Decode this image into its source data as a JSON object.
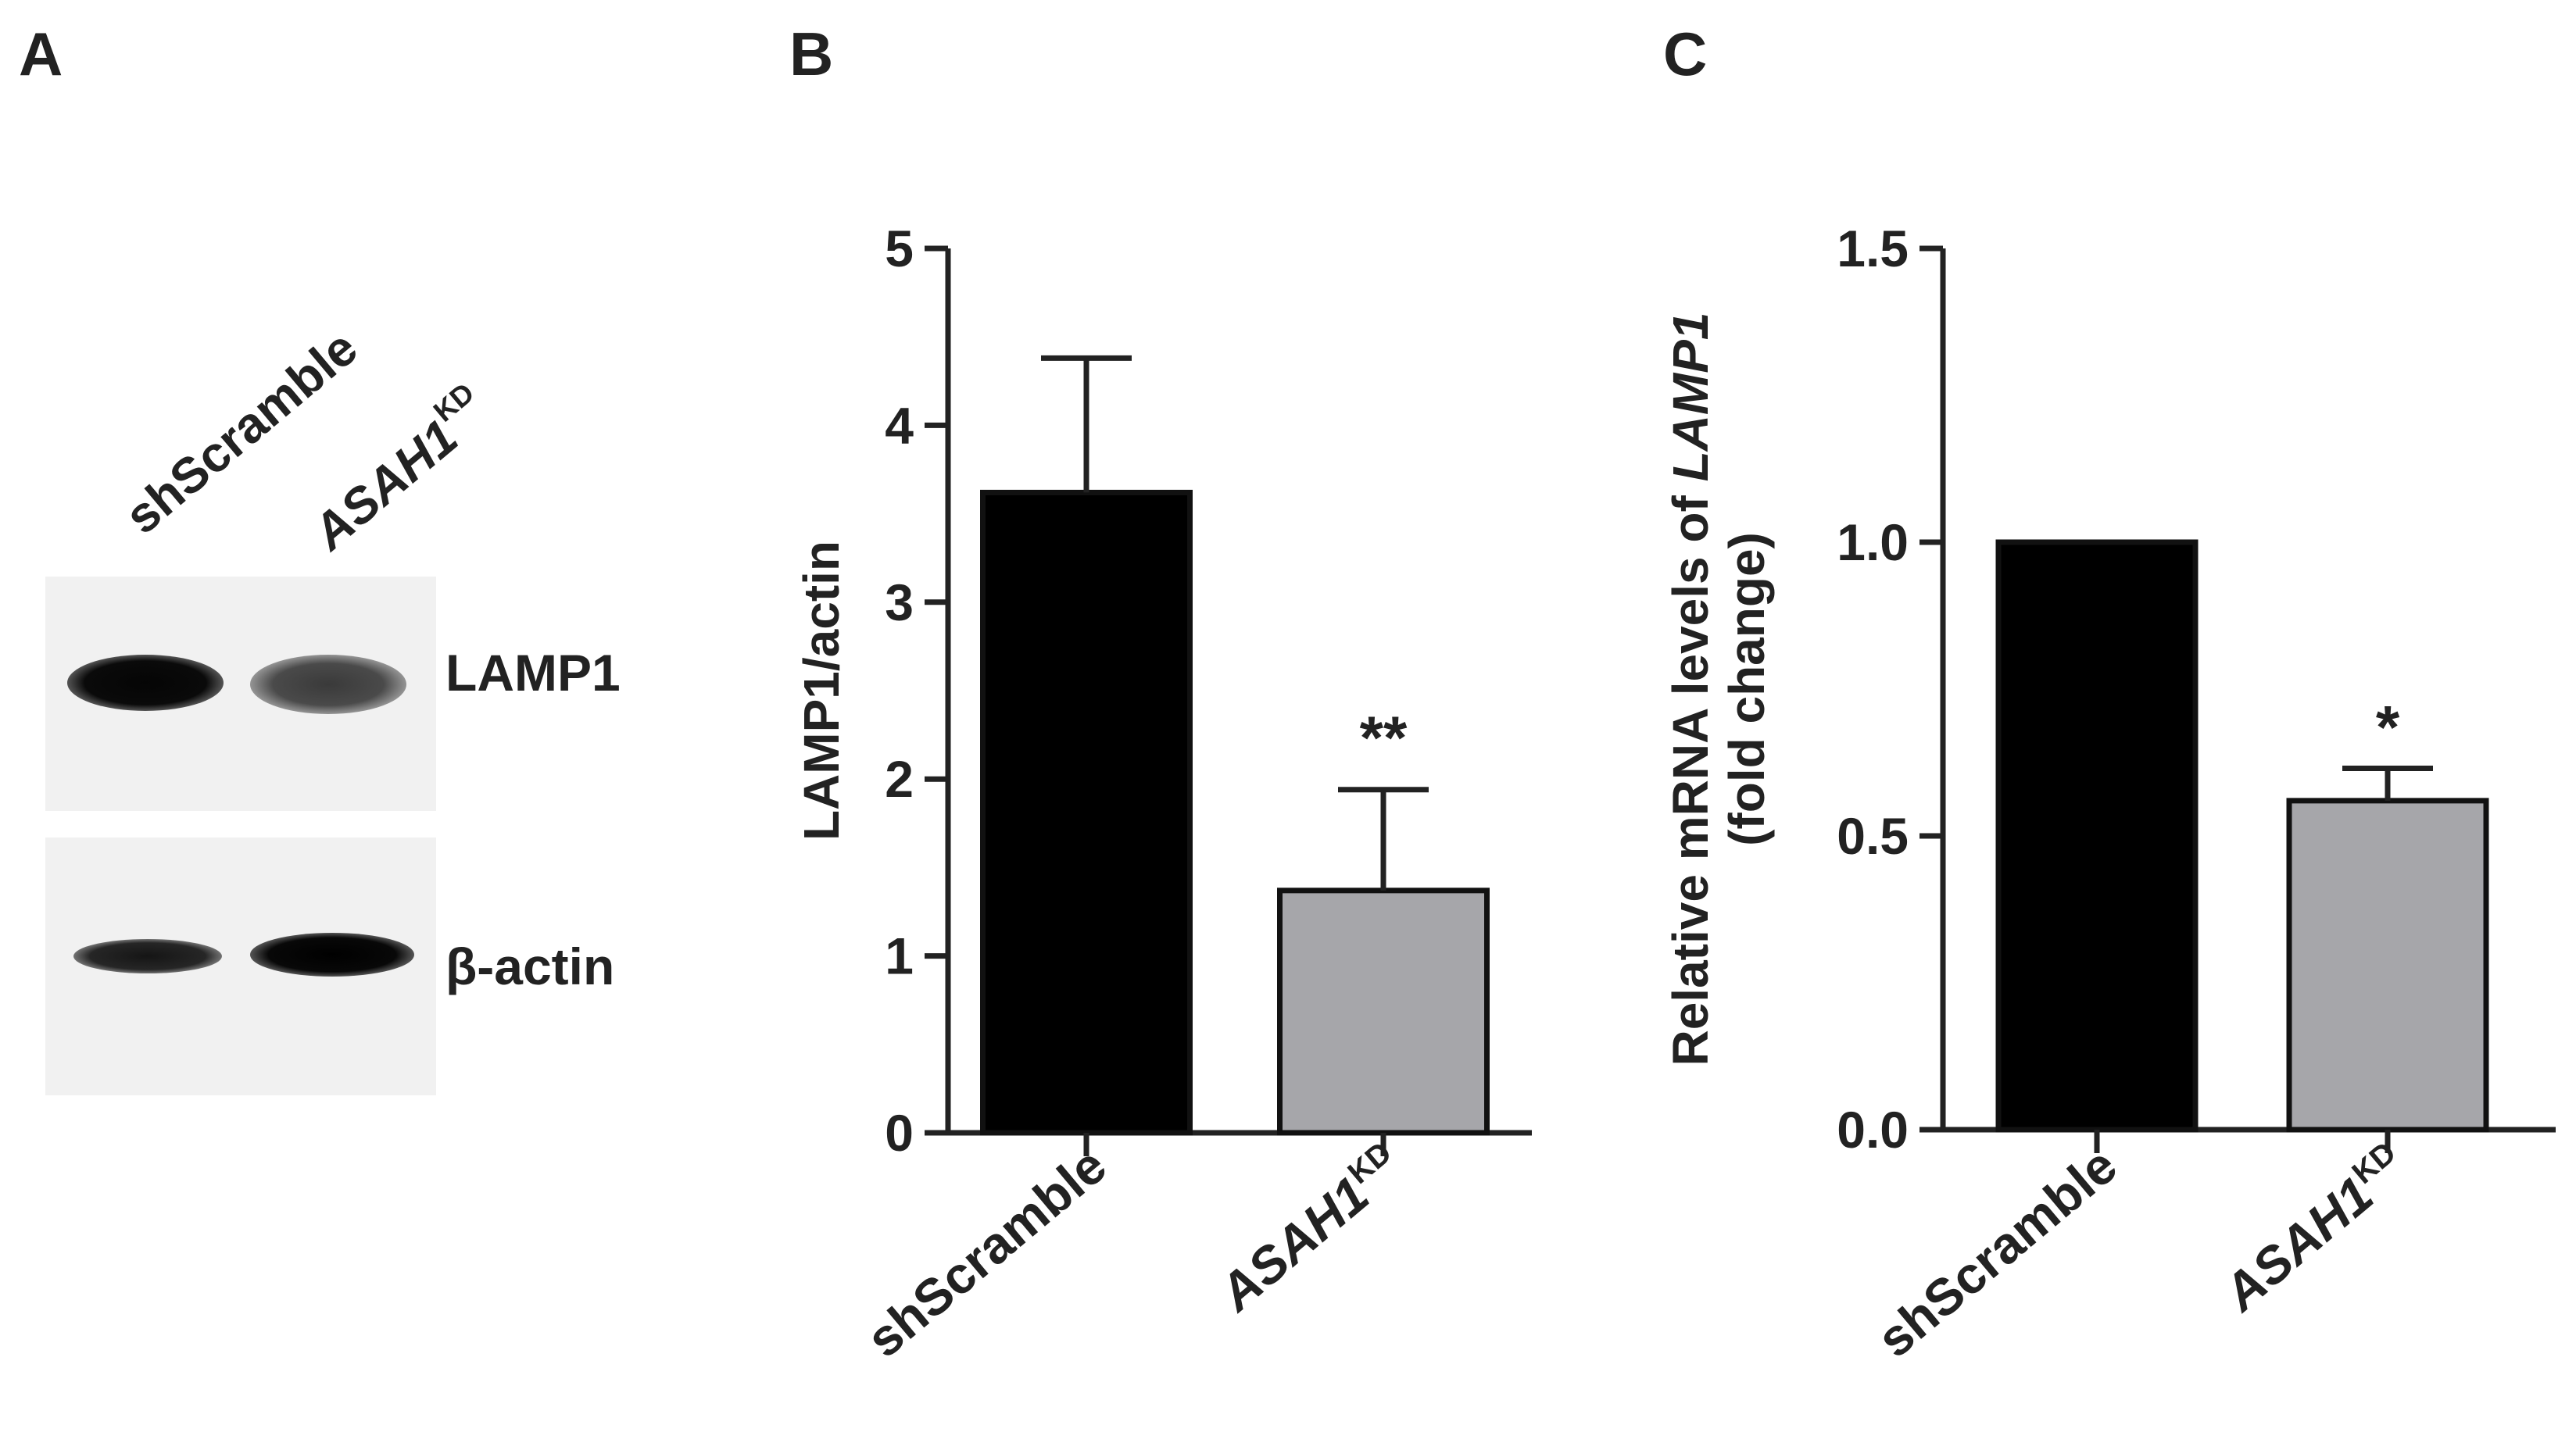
{
  "panels": {
    "a": "A",
    "b": "B",
    "c": "C"
  },
  "western_blot": {
    "lanes": [
      {
        "main": "shScramble",
        "sup": "",
        "italic": false
      },
      {
        "main": "ASAH1",
        "sup": "KD",
        "italic": true
      }
    ],
    "proteins": [
      "LAMP1",
      "β-actin"
    ]
  },
  "chart_data": [
    {
      "type": "bar",
      "panel": "B",
      "categories": [
        {
          "main": "shScramble",
          "sup": "",
          "italic": false
        },
        {
          "main": "ASAH1",
          "sup": "KD",
          "italic": true
        }
      ],
      "values": [
        3.62,
        1.37
      ],
      "errors": [
        0.76,
        0.57
      ],
      "colors": [
        "#000000",
        "#a6a6aa"
      ],
      "significance": [
        "",
        "**"
      ],
      "ylabel": "LAMP1/actin",
      "ylim": [
        0,
        5
      ],
      "yticks": [
        "0",
        "1",
        "2",
        "3",
        "4",
        "5"
      ],
      "grid": false
    },
    {
      "type": "bar",
      "panel": "C",
      "categories": [
        {
          "main": "shScramble",
          "sup": "",
          "italic": false
        },
        {
          "main": "ASAH1",
          "sup": "KD",
          "italic": true
        }
      ],
      "values": [
        1.0,
        0.56
      ],
      "errors": [
        0.0,
        0.055
      ],
      "colors": [
        "#000000",
        "#a6a6aa"
      ],
      "significance": [
        "",
        "*"
      ],
      "ylabel_parts": [
        "Relative mRNA levels of ",
        "LAMP1"
      ],
      "ylabel_line2": "(fold change)",
      "ylim": [
        0,
        1.5
      ],
      "yticks": [
        "0.0",
        "0.5",
        "1.0",
        "1.5"
      ],
      "grid": false
    }
  ]
}
